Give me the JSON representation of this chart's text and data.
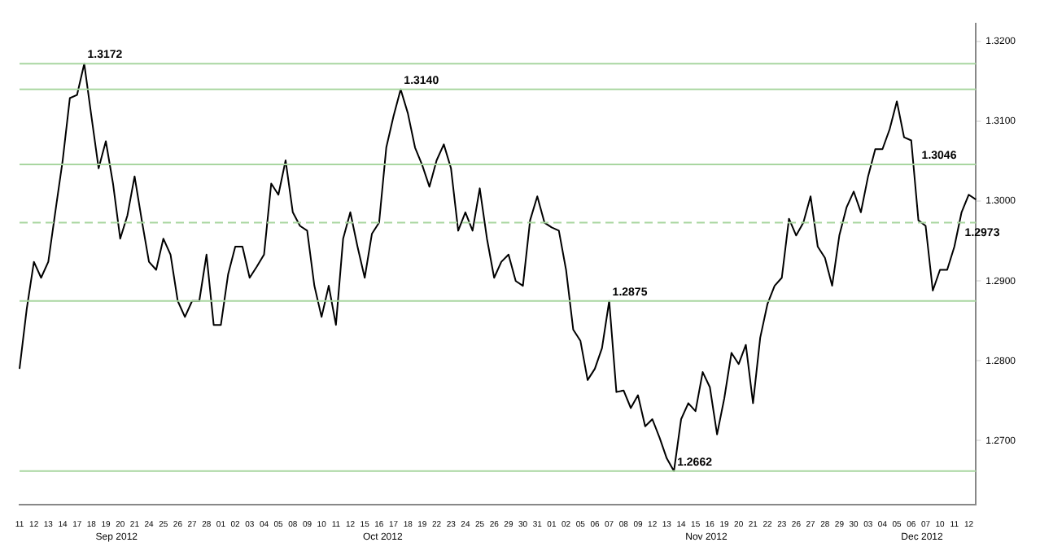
{
  "chart_data": {
    "type": "line",
    "categories": [
      "11",
      null,
      "12",
      null,
      "13",
      null,
      "14",
      null,
      "17",
      null,
      "18",
      null,
      "19",
      null,
      "20",
      null,
      "21",
      null,
      "24",
      null,
      "25",
      null,
      "26",
      null,
      "27",
      null,
      "28",
      null,
      "01",
      null,
      "02",
      null,
      "03",
      null,
      "04",
      null,
      "05",
      null,
      "08",
      null,
      "09",
      null,
      "10",
      null,
      "11",
      null,
      "12",
      null,
      "15",
      null,
      "16",
      null,
      "17",
      null,
      "18",
      null,
      "19",
      null,
      "22",
      null,
      "23",
      null,
      "24",
      null,
      "25",
      null,
      "26",
      null,
      "29",
      null,
      "30",
      null,
      "31",
      null,
      "01",
      null,
      "02",
      null,
      "05",
      null,
      "06",
      null,
      "07",
      null,
      "08",
      null,
      "09",
      null,
      "12",
      null,
      "13",
      null,
      "14",
      null,
      "15",
      null,
      "16",
      null,
      "19",
      null,
      "20",
      null,
      "21",
      null,
      "22",
      null,
      "23",
      null,
      "26",
      null,
      "27",
      null,
      "28",
      null,
      "29",
      null,
      "30",
      null,
      "03",
      null,
      "04",
      null,
      "05",
      null,
      "06",
      null,
      "07",
      null,
      "10",
      null,
      "11",
      null,
      "12",
      null
    ],
    "series": [
      {
        "color": "#000000",
        "values": [
          1.279,
          1.2865,
          1.2924,
          1.2904,
          1.2924,
          1.2988,
          1.3051,
          1.3129,
          1.3133,
          1.3172,
          1.3106,
          1.3041,
          1.3075,
          1.3022,
          1.2953,
          1.2982,
          1.3031,
          1.2976,
          1.2924,
          1.2914,
          1.2953,
          1.2933,
          1.2875,
          1.2855,
          1.2875,
          1.2875,
          1.2933,
          1.2845,
          1.2845,
          1.2908,
          1.2943,
          1.2943,
          1.2904,
          1.2918,
          1.2933,
          1.3022,
          1.3008,
          1.3051,
          1.2986,
          1.2969,
          1.2963,
          1.2894,
          1.2855,
          1.2894,
          1.2845,
          1.2953,
          1.2986,
          1.2943,
          1.2904,
          1.2959,
          1.2973,
          1.3067,
          1.3106,
          1.314,
          1.311,
          1.3067,
          1.3045,
          1.3018,
          1.3051,
          1.3071,
          1.3041,
          1.2963,
          1.2986,
          1.2963,
          1.3016,
          1.2953,
          1.2904,
          1.2924,
          1.2933,
          1.29,
          1.2894,
          1.2976,
          1.3006,
          1.2973,
          1.2967,
          1.2963,
          1.2914,
          1.2839,
          1.2825,
          1.2776,
          1.279,
          1.2816,
          1.2875,
          1.2761,
          1.2763,
          1.2741,
          1.2757,
          1.2718,
          1.2727,
          1.2704,
          1.2678,
          1.2662,
          1.2727,
          1.2747,
          1.2737,
          1.2786,
          1.2767,
          1.2708,
          1.2753,
          1.281,
          1.2796,
          1.282,
          1.2747,
          1.2829,
          1.2871,
          1.2894,
          1.2904,
          1.2978,
          1.2957,
          1.2973,
          1.3006,
          1.2943,
          1.2929,
          1.2894,
          1.2957,
          1.2992,
          1.3012,
          1.2986,
          1.3031,
          1.3065,
          1.3065,
          1.309,
          1.3125,
          1.308,
          1.3076,
          1.2976,
          1.2969,
          1.2888,
          1.2914,
          1.2914,
          1.2943,
          1.2986,
          1.3008,
          1.3002
        ]
      }
    ],
    "ylim": [
      1.262,
      1.3222
    ],
    "yticks": [
      {
        "value": 1.32,
        "label": "1.3200"
      },
      {
        "value": 1.31,
        "label": "1.3100"
      },
      {
        "value": 1.3,
        "label": "1.3000"
      },
      {
        "value": 1.29,
        "label": "1.2900"
      },
      {
        "value": 1.28,
        "label": "1.2800"
      },
      {
        "value": 1.27,
        "label": "1.2700"
      }
    ],
    "ref_lines": [
      {
        "axis": "y",
        "value": 1.3172,
        "label": "1.3172",
        "color": "#a9d6a0",
        "line_style": "solid"
      },
      {
        "axis": "y",
        "value": 1.314,
        "label": "1.3140",
        "color": "#a9d6a0",
        "line_style": "solid"
      },
      {
        "axis": "y",
        "value": 1.3046,
        "label": "1.3046",
        "color": "#a9d6a0",
        "line_style": "solid"
      },
      {
        "axis": "y",
        "value": 1.2973,
        "label": "1.2973",
        "color": "#a9d6a0",
        "line_style": "dashed"
      },
      {
        "axis": "y",
        "value": 1.2875,
        "label": "1.2875",
        "color": "#a9d6a0",
        "line_style": "solid"
      },
      {
        "axis": "y",
        "value": 1.2662,
        "label": "1.2662",
        "color": "#a9d6a0",
        "line_style": "solid"
      }
    ],
    "annotations": [
      "Sep 2012",
      "Oct 2012",
      "Nov 2012",
      "Dec 2012"
    ],
    "grid": false,
    "legend": false,
    "marker": "none",
    "line_style": "solid"
  }
}
